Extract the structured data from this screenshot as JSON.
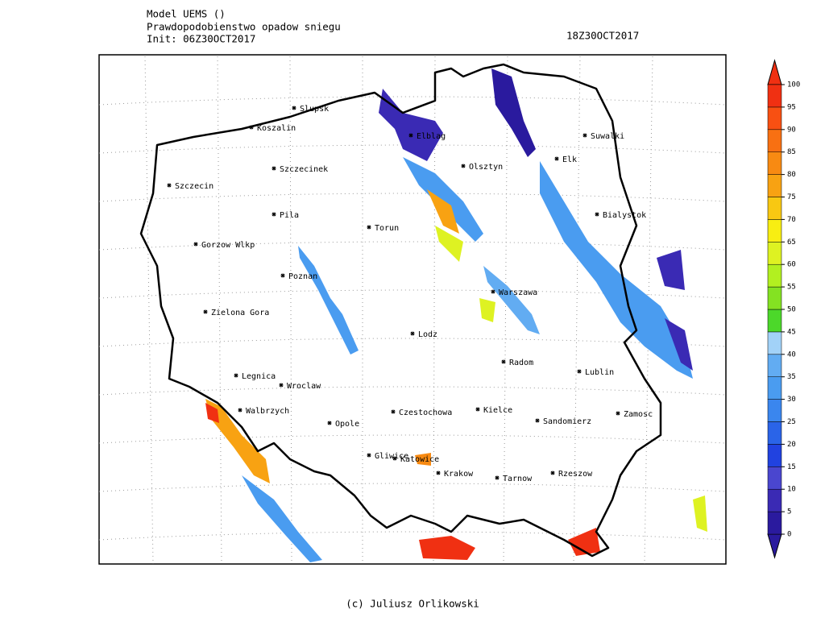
{
  "header": {
    "model": "Model UEMS ()",
    "title": "Prawdopodobienstwo opadow sniegu",
    "init": "Init: 06Z30OCT2017",
    "valid": "18Z30OCT2017"
  },
  "footer": "(c) Juliusz Orlikowski",
  "cities": [
    "Slupsk",
    "Koszalin",
    "Szczecinek",
    "Szczecin",
    "Pila",
    "Gorzow Wlkp",
    "Poznan",
    "Zielona Gora",
    "Torun",
    "Elblag",
    "Olsztyn",
    "Elk",
    "Suwalki",
    "Bialystok",
    "Warszawa",
    "Lodz",
    "Radom",
    "Lublin",
    "Legnica",
    "Wroclaw",
    "Walbrzych",
    "Opole",
    "Czestochowa",
    "Kielce",
    "Sandomierz",
    "Zamosc",
    "Gliwice",
    "Katowice",
    "Krakow",
    "Tarnow",
    "Rzeszow"
  ],
  "colorbar": {
    "ticks": [
      0,
      5,
      10,
      15,
      20,
      25,
      30,
      35,
      40,
      45,
      50,
      55,
      60,
      65,
      70,
      75,
      80,
      85,
      90,
      95,
      100
    ],
    "colors": [
      "#2a1a9e",
      "#3a2ab4",
      "#4a46cf",
      "#2142e0",
      "#2a64e8",
      "#3a86ee",
      "#4a9cf0",
      "#62acf2",
      "#a2d2f8",
      "#4cd82a",
      "#84e222",
      "#b2f020",
      "#def222",
      "#f8ee12",
      "#f8c812",
      "#f8a212",
      "#f88a12",
      "#f87012",
      "#f85012",
      "#f03012"
    ]
  }
}
